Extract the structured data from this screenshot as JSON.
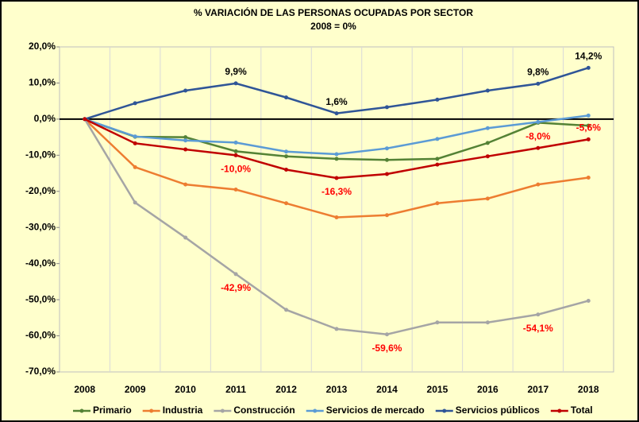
{
  "chart_data": {
    "type": "line",
    "title": "% VARIACIÓN DE LAS PERSONAS OCUPADAS POR SECTOR",
    "subtitle": "2008 = 0%",
    "categories": [
      "2008",
      "2009",
      "2010",
      "2011",
      "2012",
      "2013",
      "2014",
      "2015",
      "2016",
      "2017",
      "2018"
    ],
    "series": [
      {
        "name": "Primario",
        "color": "#548235",
        "values": [
          0,
          -4.9,
          -5.0,
          -8.9,
          -10.3,
          -11.0,
          -11.3,
          -11.0,
          -6.6,
          -1.0,
          -1.8
        ]
      },
      {
        "name": "Industria",
        "color": "#ED7D31",
        "values": [
          0,
          -13.3,
          -18.1,
          -19.5,
          -23.3,
          -27.2,
          -26.6,
          -23.3,
          -22.0,
          -18.1,
          -16.2
        ]
      },
      {
        "name": "Construcción",
        "color": "#A5A5A5",
        "values": [
          0,
          -23.1,
          -32.8,
          -42.9,
          -52.8,
          -58.1,
          -59.6,
          -56.3,
          -56.3,
          -54.1,
          -50.3
        ],
        "value_labels": [
          null,
          null,
          null,
          "-42,9%",
          null,
          null,
          "-59,6%",
          null,
          null,
          "-54,1%",
          null
        ],
        "label_color": "#FF0000"
      },
      {
        "name": "Servicios de mercado",
        "color": "#5B9BD5",
        "values": [
          0,
          -4.8,
          -5.9,
          -6.5,
          -9.0,
          -9.7,
          -8.1,
          -5.5,
          -2.5,
          -0.8,
          1.0
        ]
      },
      {
        "name": "Servicios públicos",
        "color": "#2F5597",
        "values": [
          0,
          4.4,
          7.9,
          9.9,
          6.0,
          1.6,
          3.3,
          5.4,
          7.9,
          9.8,
          14.2
        ],
        "value_labels": [
          null,
          null,
          null,
          "9,9%",
          null,
          "1,6%",
          null,
          null,
          null,
          "9,8%",
          "14,2%"
        ],
        "label_color": "#000000"
      },
      {
        "name": "Total",
        "color": "#C00000",
        "values": [
          0,
          -6.7,
          -8.4,
          -10.0,
          -14.0,
          -16.3,
          -15.2,
          -12.6,
          -10.3,
          -8.0,
          -5.6
        ],
        "value_labels": [
          null,
          null,
          null,
          "-10,0%",
          null,
          "-16,3%",
          null,
          null,
          null,
          "-8,0%",
          "-5,6%"
        ],
        "label_color": "#FF0000"
      }
    ],
    "ylim": [
      -70,
      20
    ],
    "yticks": [
      {
        "value": -70,
        "label": "-70,0%"
      },
      {
        "value": -60,
        "label": "-60,0%"
      },
      {
        "value": -50,
        "label": "-50,0%"
      },
      {
        "value": -40,
        "label": "-40,0%"
      },
      {
        "value": -30,
        "label": "-30,0%"
      },
      {
        "value": -20,
        "label": "-20,0%"
      },
      {
        "value": -10,
        "label": "-10,0%"
      },
      {
        "value": 0,
        "label": "0,0%"
      },
      {
        "value": 10,
        "label": "10,0%"
      },
      {
        "value": 20,
        "label": "20,0%"
      }
    ],
    "grid": "x",
    "legend": "bottom",
    "background": "#FFFFCC"
  }
}
